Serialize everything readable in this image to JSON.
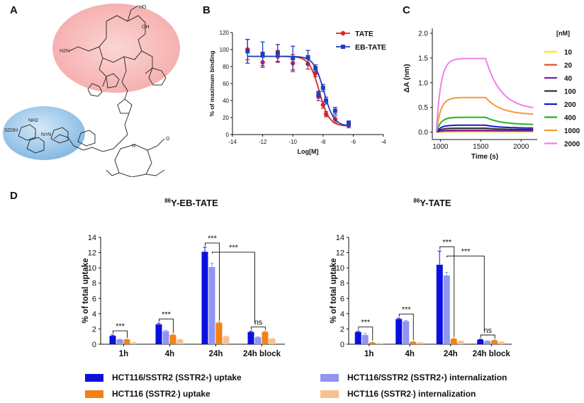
{
  "panels": {
    "a": "A",
    "b": "B",
    "c": "C",
    "d": "D"
  },
  "structure": {
    "labels": [
      "HO",
      "OH",
      "H2N",
      "SO3H",
      "NH2",
      "N=N",
      "N",
      "O"
    ]
  },
  "colors": {
    "tate": "#d62728",
    "ebtate": "#1f3fbf",
    "ssr_uptake": "#0a10dd",
    "ssr_intern": "#8f95f0",
    "neg_uptake": "#f08217",
    "neg_intern": "#f7c18e",
    "pink_bubble": "#f5b9b8",
    "blue_bubble": "#9ec9ec"
  },
  "chart_data": [
    {
      "id": "B",
      "type": "line",
      "xlabel": "Log[M]",
      "ylabel": "% of maximum binding",
      "xlim": [
        -14,
        -4
      ],
      "ylim": [
        0,
        120
      ],
      "xticks": [
        "-14",
        "-12",
        "-10",
        "-8",
        "-6",
        "-4"
      ],
      "yticks": [
        "0",
        "20",
        "40",
        "60",
        "80",
        "100",
        "120"
      ],
      "legend_position": "top-right",
      "series": [
        {
          "name": "TATE",
          "x": [
            -13,
            -12,
            -11,
            -10,
            -9,
            -8.5,
            -8.3,
            -8,
            -7.8,
            -7.2,
            -6.3
          ],
          "y": [
            100,
            85,
            92,
            84,
            83,
            72,
            45,
            35,
            24,
            18,
            11
          ],
          "err": [
            12,
            6,
            7,
            10,
            6,
            4,
            5,
            4,
            3,
            4,
            3
          ],
          "fit": {
            "top": 92,
            "bottom": 10,
            "logIC50": -8.25,
            "hill": 1.3
          }
        },
        {
          "name": "EB-TATE",
          "x": [
            -13,
            -12,
            -11,
            -10,
            -9,
            -8.5,
            -8.3,
            -8,
            -7.8,
            -7.2,
            -6.3
          ],
          "y": [
            98,
            95,
            96,
            90,
            91,
            78,
            47,
            55,
            40,
            28,
            13
          ],
          "err": [
            14,
            14,
            10,
            14,
            8,
            4,
            4,
            4,
            4,
            4,
            3
          ],
          "fit": {
            "top": 92,
            "bottom": 10,
            "logIC50": -7.95,
            "hill": 1.3
          }
        }
      ]
    },
    {
      "id": "C",
      "type": "line",
      "xlabel": "Time (s)",
      "ylabel": "ΔA (nm)",
      "xlim": [
        900,
        2200
      ],
      "ylim": [
        -0.15,
        2.1
      ],
      "xticks": [
        "1000",
        "1500",
        "2000"
      ],
      "yticks": [
        "0.0",
        "0.5",
        "1.0",
        "1.5",
        "2.0"
      ],
      "legend_title": "[nM]",
      "association_start": 950,
      "dissociation_start": 1560,
      "end_time": 2150,
      "series": [
        {
          "name": "10",
          "color": "#ffe800",
          "plateau": 0.01,
          "end": 0.01
        },
        {
          "name": "20",
          "color": "#e8502e",
          "plateau": 0.02,
          "end": 0.02
        },
        {
          "name": "40",
          "color": "#7b1fa2",
          "plateau": 0.04,
          "end": 0.03
        },
        {
          "name": "100",
          "color": "#333333",
          "plateau": 0.08,
          "end": 0.05
        },
        {
          "name": "200",
          "color": "#1515d8",
          "plateau": 0.14,
          "end": 0.08
        },
        {
          "name": "400",
          "color": "#23b323",
          "plateau": 0.3,
          "end": 0.15
        },
        {
          "name": "1000",
          "color": "#f59a36",
          "plateau": 0.7,
          "end": 0.35
        },
        {
          "name": "2000",
          "color": "#f27ee8",
          "plateau": 1.49,
          "end": 0.45
        }
      ]
    },
    {
      "id": "D-left",
      "type": "bar",
      "title": "86Y-EB-TATE",
      "title_sup": "86",
      "title_main": "Y-EB-TATE",
      "ylabel": "% of total uptake",
      "ylim": [
        0,
        14
      ],
      "yticks": [
        "0",
        "2",
        "4",
        "6",
        "8",
        "10",
        "12",
        "14"
      ],
      "categories": [
        "1h",
        "4h",
        "24h",
        "24h block"
      ],
      "series": [
        {
          "name": "HCT116/SSTR2 (SSTR2+) uptake",
          "values": [
            1.1,
            2.6,
            12.1,
            1.6
          ],
          "err": [
            0.1,
            0.15,
            0.6,
            0.1
          ]
        },
        {
          "name": "HCT116/SSTR2 (SSTR2+) internalization",
          "values": [
            0.6,
            1.7,
            10.1,
            0.9
          ],
          "err": [
            0.05,
            0.1,
            0.5,
            0.05
          ]
        },
        {
          "name": "HCT116 (SSTR2-) uptake",
          "values": [
            0.6,
            1.2,
            2.8,
            1.6
          ],
          "err": [
            0.05,
            0.1,
            0.1,
            0.1
          ]
        },
        {
          "name": "HCT116 (SSTR2-) internalization",
          "values": [
            0.2,
            0.6,
            1.0,
            0.7
          ],
          "err": [
            0.05,
            0.05,
            0.05,
            0.05
          ]
        }
      ],
      "annotations": [
        {
          "label": "***",
          "from": 0,
          "to": 2,
          "group": "1h"
        },
        {
          "label": "***",
          "from": 0,
          "to": 2,
          "group": "4h"
        },
        {
          "label": "***",
          "from": 0,
          "to": 2,
          "group": "24h"
        },
        {
          "label": "***",
          "from": "24h",
          "to": "24h block"
        },
        {
          "label": "ns",
          "from": 0,
          "to": 2,
          "group": "24h block"
        }
      ]
    },
    {
      "id": "D-right",
      "type": "bar",
      "title": "86Y-TATE",
      "title_sup": "86",
      "title_main": "Y-TATE",
      "ylabel": "% of total uptake",
      "ylim": [
        0,
        14
      ],
      "yticks": [
        "0",
        "2",
        "4",
        "6",
        "8",
        "10",
        "12",
        "14"
      ],
      "categories": [
        "1h",
        "4h",
        "24h",
        "24h block"
      ],
      "series": [
        {
          "name": "HCT116/SSTR2 (SSTR2+) uptake",
          "values": [
            1.6,
            3.3,
            10.4,
            0.6
          ],
          "err": [
            0.1,
            0.1,
            1.8,
            0.05
          ]
        },
        {
          "name": "HCT116/SSTR2 (SSTR2+) internalization",
          "values": [
            1.2,
            3.0,
            9.0,
            0.4
          ],
          "err": [
            0.2,
            0.1,
            0.4,
            0.05
          ]
        },
        {
          "name": "HCT116 (SSTR2-) uptake",
          "values": [
            0.2,
            0.3,
            0.7,
            0.5
          ],
          "err": [
            0.03,
            0.03,
            0.05,
            0.05
          ]
        },
        {
          "name": "HCT116 (SSTR2-) internalization",
          "values": [
            0.1,
            0.2,
            0.4,
            0.3
          ],
          "err": [
            0.02,
            0.02,
            0.03,
            0.03
          ]
        }
      ],
      "annotations": [
        {
          "label": "***",
          "from": 0,
          "to": 2,
          "group": "1h"
        },
        {
          "label": "***",
          "from": 0,
          "to": 2,
          "group": "4h"
        },
        {
          "label": "***",
          "from": 0,
          "to": 2,
          "group": "24h"
        },
        {
          "label": "***",
          "from": "24h",
          "to": "24h block"
        },
        {
          "label": "ns",
          "from": 0,
          "to": 2,
          "group": "24h block"
        }
      ]
    }
  ],
  "legend_d": [
    {
      "label": "HCT116/SSTR2 (SSTR2",
      "sup": "+",
      "after": ") uptake",
      "color": "#0a10dd"
    },
    {
      "label": "HCT116/SSTR2 (SSTR2",
      "sup": "+",
      "after": ") internalization",
      "color": "#8f95f0"
    },
    {
      "label": "HCT116 (SSTR2",
      "sup": "-",
      "after": ")  uptake",
      "color": "#f08217"
    },
    {
      "label": "HCT116 (SSTR2",
      "sup": "-",
      "after": ")  internalization",
      "color": "#f7c18e"
    }
  ]
}
